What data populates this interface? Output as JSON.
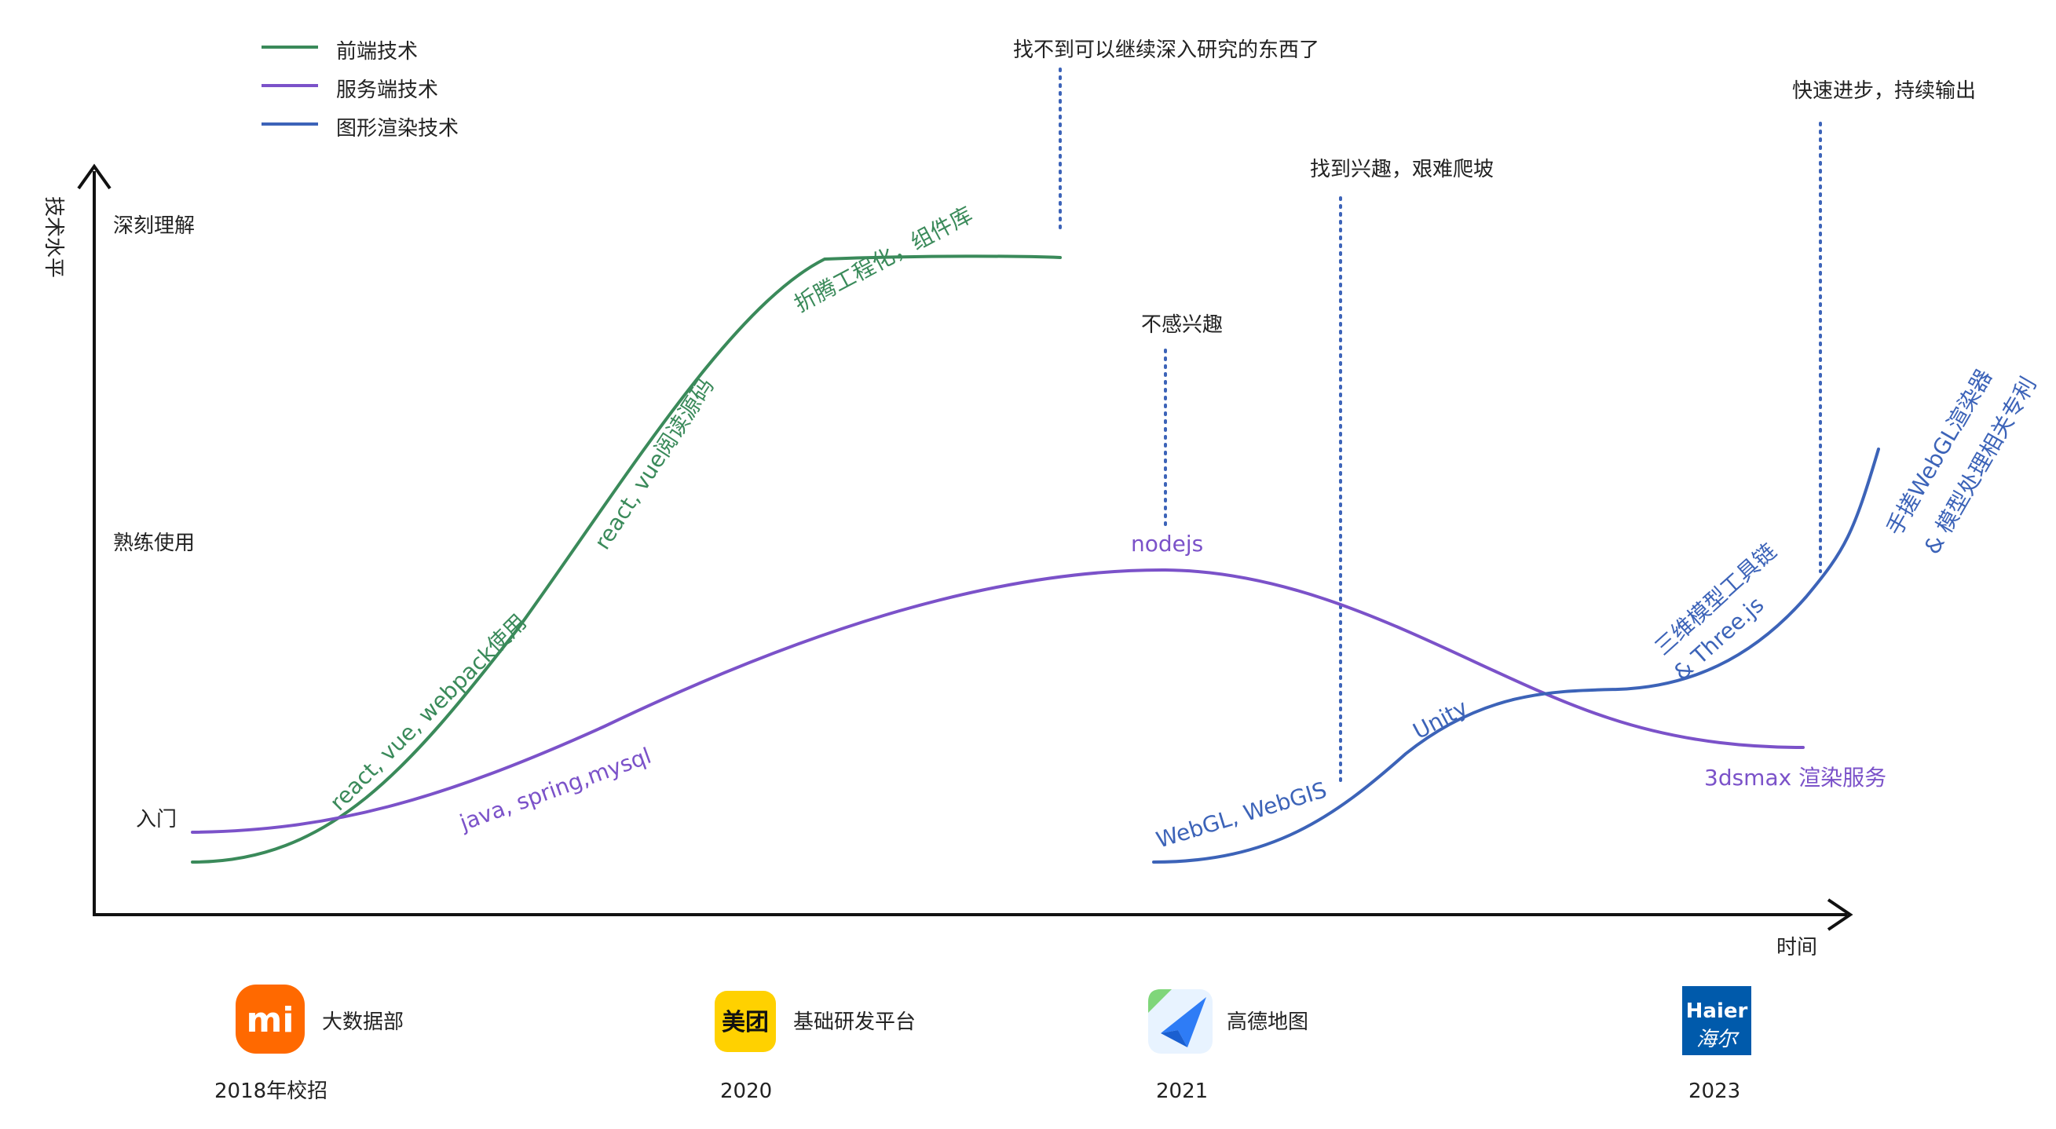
{
  "chart_data": {
    "type": "line",
    "title": "",
    "xlabel": "时间",
    "ylabel": "技术水平",
    "y_levels": [
      "入门",
      "熟练使用",
      "深刻理解"
    ],
    "grid": false,
    "legend_position": "top-left",
    "series": [
      {
        "name": "前端技术",
        "color": "#3a8a5a",
        "annotations": [
          "react, vue, webpack使用",
          "react, vue阅读源码",
          "折腾工程化，组件库"
        ]
      },
      {
        "name": "服务端技术",
        "color": "#7b52c9",
        "annotations": [
          "java, spring,mysql",
          "nodejs",
          "3dsmax 渲染服务"
        ]
      },
      {
        "name": "图形渲染技术",
        "color": "#3c63b8",
        "annotations": [
          "WebGL, WebGIS",
          "Unity",
          "三维模型工具链",
          "& Three.js",
          "手搓WebGL渲染器",
          "& 模型处理相关专利"
        ]
      }
    ],
    "callouts": [
      "找不到可以继续深入研究的东西了",
      "不感兴趣",
      "找到兴趣，艰难爬坡",
      "快速进步，持续输出"
    ]
  },
  "timeline": [
    {
      "company": "大数据部",
      "year": "2018年校招",
      "logo": "xiaomi-logo",
      "logo_text": "mi",
      "logo_color": "#ff6900"
    },
    {
      "company": "基础研发平台",
      "year": "2020",
      "logo": "meituan-logo",
      "logo_text": "美团",
      "logo_color": "#ffd100"
    },
    {
      "company": "高德地图",
      "year": "2021",
      "logo": "amap-logo",
      "logo_text": "",
      "logo_color": "#2e7cf6"
    },
    {
      "company": "",
      "year": "2023",
      "logo": "haier-logo",
      "logo_text": "Haier",
      "logo_text2": "海尔",
      "logo_color": "#005aab"
    }
  ]
}
